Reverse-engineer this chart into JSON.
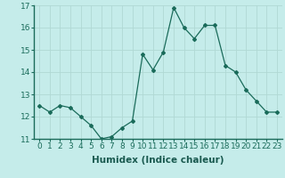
{
  "x": [
    0,
    1,
    2,
    3,
    4,
    5,
    6,
    7,
    8,
    9,
    10,
    11,
    12,
    13,
    14,
    15,
    16,
    17,
    18,
    19,
    20,
    21,
    22,
    23
  ],
  "y": [
    12.5,
    12.2,
    12.5,
    12.4,
    12.0,
    11.6,
    11.0,
    11.1,
    11.5,
    11.8,
    14.8,
    14.1,
    14.9,
    16.9,
    16.0,
    15.5,
    16.1,
    16.1,
    14.3,
    14.0,
    13.2,
    12.7,
    12.2,
    12.2
  ],
  "xlabel": "Humidex (Indice chaleur)",
  "ylim": [
    11,
    17
  ],
  "yticks": [
    11,
    12,
    13,
    14,
    15,
    16,
    17
  ],
  "xticks": [
    0,
    1,
    2,
    3,
    4,
    5,
    6,
    7,
    8,
    9,
    10,
    11,
    12,
    13,
    14,
    15,
    16,
    17,
    18,
    19,
    20,
    21,
    22,
    23
  ],
  "line_color": "#1a6b5a",
  "marker": "D",
  "marker_size": 2.0,
  "bg_color": "#c5ecea",
  "grid_color": "#b0d8d4",
  "xlabel_fontsize": 7.5,
  "tick_fontsize": 6.5
}
